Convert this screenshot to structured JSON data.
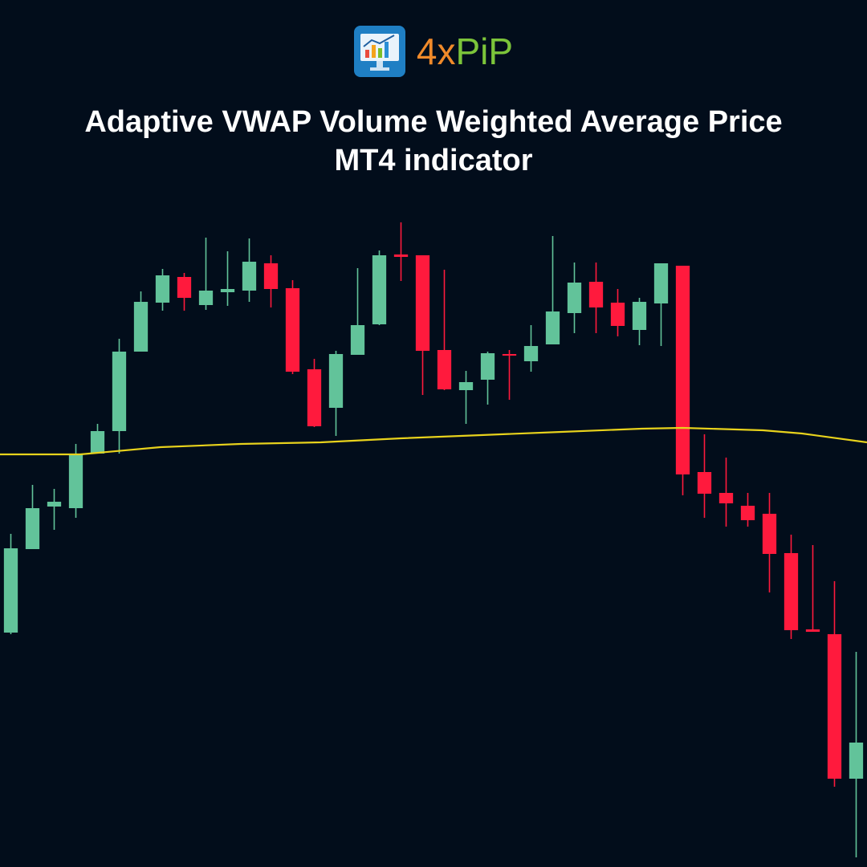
{
  "logo": [
    "4x",
    "PiP"
  ],
  "chart_data": {
    "type": "candlestick",
    "title": "Adaptive VWAP Volume Weighted Average Price MT4 indicator",
    "up_color": "#62c39a",
    "down_color": "#ff1a3d",
    "xlim": [
      -0.5,
      39.5
    ],
    "ylim": [
      0,
      810
    ],
    "open": [
      292,
      396,
      449,
      447,
      515,
      543,
      642,
      703,
      735,
      700,
      716,
      718,
      752,
      721,
      620,
      572,
      638,
      676,
      763,
      762,
      644,
      594,
      607,
      639,
      630,
      651,
      690,
      729,
      703,
      669,
      702,
      749,
      492,
      466,
      450,
      440,
      391,
      296,
      290,
      110
    ],
    "high": [
      415,
      476,
      471,
      527,
      552,
      658,
      717,
      745,
      740,
      784,
      767,
      783,
      762,
      731,
      633,
      643,
      746,
      768,
      803,
      762,
      744,
      618,
      642,
      644,
      675,
      786,
      753,
      753,
      720,
      709,
      752,
      749,
      539,
      510,
      466,
      466,
      414,
      401,
      356,
      268
    ],
    "low": [
      290,
      396,
      420,
      435,
      515,
      515,
      642,
      693,
      693,
      694,
      699,
      704,
      697,
      614,
      548,
      537,
      638,
      675,
      730,
      588,
      594,
      552,
      576,
      582,
      617,
      651,
      665,
      665,
      661,
      650,
      649,
      463,
      435,
      424,
      424,
      342,
      284,
      293,
      100,
      12
    ],
    "close": [
      397,
      447,
      455,
      515,
      543,
      642,
      704,
      737,
      709,
      718,
      720,
      754,
      720,
      617,
      549,
      639,
      675,
      762,
      760,
      643,
      595,
      604,
      640,
      637,
      649,
      692,
      728,
      697,
      674,
      704,
      752,
      489,
      465,
      453,
      432,
      390,
      295,
      293,
      110,
      155
    ],
    "line": {
      "color": "#e8d21c",
      "x": [
        -0.5,
        3.2,
        6.9,
        10.6,
        14.3,
        18,
        21.7,
        25.4,
        29.1,
        31,
        34.7,
        36.5,
        39.5
      ],
      "values": [
        514,
        514,
        523,
        527,
        529,
        534,
        538,
        542,
        546,
        547,
        544,
        540,
        529
      ]
    }
  }
}
